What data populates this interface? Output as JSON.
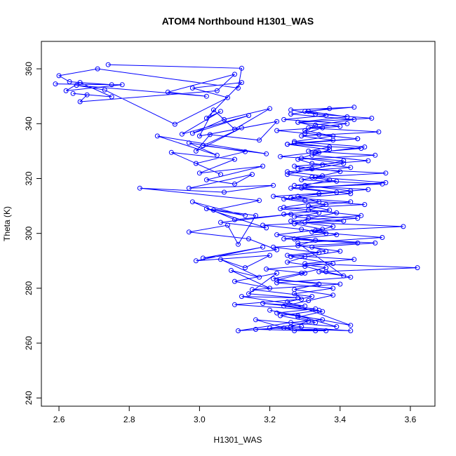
{
  "chart_data": {
    "type": "line",
    "title": "ATOM4 Northbound H1301_WAS",
    "xlabel": "H1301_WAS",
    "ylabel": "Theta (K)",
    "xlim": [
      2.55,
      3.67
    ],
    "ylim": [
      237,
      370
    ],
    "x_ticks": [
      2.6,
      2.8,
      3.0,
      3.2,
      3.4,
      3.6
    ],
    "x_tick_labels": [
      "2.6",
      "2.8",
      "3.0",
      "3.2",
      "3.4",
      "3.6"
    ],
    "y_ticks": [
      240,
      260,
      280,
      300,
      320,
      340,
      360
    ],
    "y_tick_labels": [
      "240",
      "260",
      "280",
      "300",
      "320",
      "340",
      "360"
    ],
    "grid": false,
    "series": [
      {
        "color": "#0000ff",
        "marker": "open-circle",
        "line": true,
        "x": [
          2.74,
          3.12,
          3.11,
          2.71,
          2.6,
          2.63,
          2.75,
          2.59,
          2.78,
          2.62,
          2.66,
          2.75,
          2.64,
          2.68,
          2.66,
          3.05,
          3.1,
          2.91,
          3.02,
          2.65,
          2.73,
          2.93,
          3.08,
          2.98,
          3.12,
          3.02,
          3.06,
          2.95,
          3.14,
          2.98,
          3.07,
          3.2,
          3.1,
          3.04,
          3.0,
          3.22,
          3.17,
          3.03,
          2.99,
          3.12,
          3.01,
          3.19,
          2.88,
          3.05,
          2.97,
          3.13,
          2.99,
          3.06,
          2.92,
          3.1,
          3.0,
          3.18,
          3.02,
          3.1,
          3.15,
          2.97,
          3.21,
          3.07,
          2.83,
          3.17,
          3.04,
          3.13,
          2.98,
          3.1,
          3.26,
          3.06,
          3.19,
          3.02,
          3.16,
          3.11,
          3.08,
          2.97,
          3.14,
          3.22,
          3.01,
          3.18,
          2.99,
          3.2,
          3.13,
          3.06,
          3.17,
          3.09,
          3.2,
          3.1,
          3.22,
          3.14,
          3.28,
          3.12,
          3.3,
          3.18,
          3.33,
          3.22,
          3.35,
          3.26,
          3.11,
          3.29,
          3.16,
          3.33,
          3.24,
          3.36,
          3.27,
          3.16,
          3.39,
          3.28,
          3.2,
          3.43,
          3.25,
          3.32,
          3.15,
          3.4,
          3.22,
          3.3,
          3.19,
          3.38,
          3.26,
          3.34,
          3.21,
          3.45,
          3.24,
          3.36,
          3.29,
          3.18,
          3.41,
          3.27,
          3.34,
          3.23,
          3.47,
          3.3,
          3.21,
          3.39,
          3.26,
          3.52,
          3.29,
          3.35,
          3.25,
          3.43,
          3.32,
          3.28,
          3.5,
          3.31,
          3.37,
          3.27,
          3.45,
          3.34,
          3.22,
          3.4,
          3.28,
          3.49,
          3.33,
          3.26,
          3.44,
          3.3,
          3.36,
          3.24,
          3.42,
          3.31,
          3.51,
          3.29,
          3.38,
          3.25,
          3.46,
          3.33,
          3.23,
          3.41,
          3.35,
          3.28,
          3.53,
          3.32,
          3.39,
          3.27,
          3.48,
          3.34,
          3.26,
          3.43,
          3.31,
          3.37,
          3.24,
          3.45,
          3.3,
          3.58,
          3.33,
          3.39,
          3.27,
          3.5,
          3.32,
          3.36,
          3.25,
          3.44,
          3.3,
          3.62,
          3.34,
          3.41,
          3.28,
          3.52,
          3.32,
          3.38,
          3.26,
          3.46,
          3.31,
          3.36,
          3.24,
          3.43,
          3.29,
          3.53,
          3.33,
          3.4,
          3.27,
          3.48,
          3.32,
          3.37,
          3.25,
          3.45,
          3.3,
          3.35,
          3.28,
          3.42,
          3.31,
          3.37,
          3.26,
          3.44,
          3.33,
          3.3,
          3.38,
          3.27,
          3.47,
          3.34,
          3.29,
          3.41,
          3.32,
          3.25,
          3.37,
          3.3,
          3.43,
          3.28,
          3.34,
          3.24,
          3.39,
          3.31,
          3.27,
          3.35,
          3.22,
          3.33,
          3.28,
          3.4,
          3.3,
          3.25,
          3.36,
          3.29,
          3.21,
          3.34,
          3.27,
          3.38,
          3.31,
          3.24,
          3.35,
          3.28,
          3.33,
          3.2,
          3.43,
          3.26,
          3.31,
          3.23,
          3.34,
          3.1,
          3.29,
          3.27,
          3.38,
          3.22,
          3.43,
          3.36,
          3.3
        ],
        "y": [
          361.5,
          360.2,
          353.0,
          360.0,
          357.5,
          355.3,
          354.2,
          354.5,
          354.2,
          352.0,
          355.0,
          349.8,
          351.0,
          350.5,
          348.0,
          352.0,
          358.0,
          351.5,
          350.0,
          354.0,
          352.3,
          339.8,
          349.5,
          353.0,
          355.0,
          342.0,
          344.5,
          336.2,
          343.0,
          336.5,
          341.5,
          345.5,
          338.0,
          345.0,
          335.5,
          340.8,
          334.0,
          336.0,
          330.0,
          338.5,
          332.0,
          329.0,
          335.5,
          328.5,
          333.0,
          329.8,
          325.5,
          321.5,
          329.5,
          327.0,
          322.0,
          324.5,
          319.5,
          318.0,
          321.5,
          316.5,
          317.5,
          315.0,
          316.5,
          312.0,
          308.5,
          306.5,
          311.5,
          305.0,
          307.0,
          304.0,
          302.0,
          309.0,
          306.5,
          296.0,
          303.0,
          300.5,
          298.0,
          294.0,
          291.0,
          295.0,
          290.0,
          292.0,
          287.5,
          290.5,
          284.0,
          286.5,
          280.0,
          282.5,
          285.5,
          278.0,
          276.5,
          277.0,
          273.5,
          274.5,
          272.5,
          271.0,
          268.5,
          267.5,
          264.5,
          266.0,
          265.0,
          264.5,
          265.5,
          264.5,
          264.5,
          268.5,
          266.0,
          270.0,
          272.0,
          266.5,
          275.0,
          277.0,
          279.5,
          281.5,
          283.0,
          285.5,
          287.0,
          289.0,
          291.5,
          293.0,
          295.0,
          296.5,
          298.0,
          300.0,
          301.5,
          303.0,
          304.5,
          306.0,
          307.5,
          309.0,
          310.5,
          312.0,
          313.5,
          315.0,
          316.5,
          318.0,
          319.5,
          321.0,
          322.5,
          324.0,
          325.5,
          327.0,
          328.5,
          330.0,
          331.5,
          333.0,
          334.5,
          336.0,
          337.5,
          339.0,
          340.5,
          342.0,
          343.5,
          345.0,
          346.0,
          344.5,
          343.0,
          341.5,
          340.0,
          338.5,
          337.0,
          335.5,
          334.0,
          332.5,
          331.0,
          329.5,
          328.0,
          326.5,
          325.0,
          323.5,
          322.0,
          320.5,
          319.0,
          317.5,
          316.0,
          314.5,
          313.0,
          311.5,
          310.0,
          308.5,
          307.0,
          305.5,
          304.0,
          302.5,
          301.0,
          299.5,
          298.0,
          296.5,
          295.0,
          293.5,
          292.0,
          290.5,
          289.0,
          287.5,
          286.0,
          284.5,
          296.5,
          298.5,
          300.5,
          302.5,
          304.5,
          306.5,
          308.5,
          310.5,
          312.5,
          314.5,
          316.5,
          318.5,
          320.5,
          322.5,
          324.5,
          326.5,
          328.5,
          330.5,
          332.5,
          334.5,
          336.5,
          338.5,
          340.5,
          342.5,
          344.5,
          345.5,
          343.5,
          341.5,
          339.5,
          337.5,
          335.5,
          333.5,
          331.5,
          329.5,
          327.5,
          325.5,
          323.5,
          321.5,
          319.5,
          317.5,
          315.5,
          313.5,
          311.5,
          309.5,
          307.5,
          305.5,
          303.5,
          301.5,
          299.5,
          297.5,
          295.5,
          293.5,
          291.5,
          289.5,
          287.5,
          285.5,
          283.5,
          281.5,
          279.5,
          277.5,
          275.5,
          273.5,
          271.5,
          269.5,
          267.5,
          265.5,
          264.5,
          266.0,
          268.0,
          270.0,
          272.0,
          274.0,
          276.0,
          278.0,
          280.0,
          282.0,
          284.0,
          286.0,
          288.0
        ]
      }
    ]
  }
}
